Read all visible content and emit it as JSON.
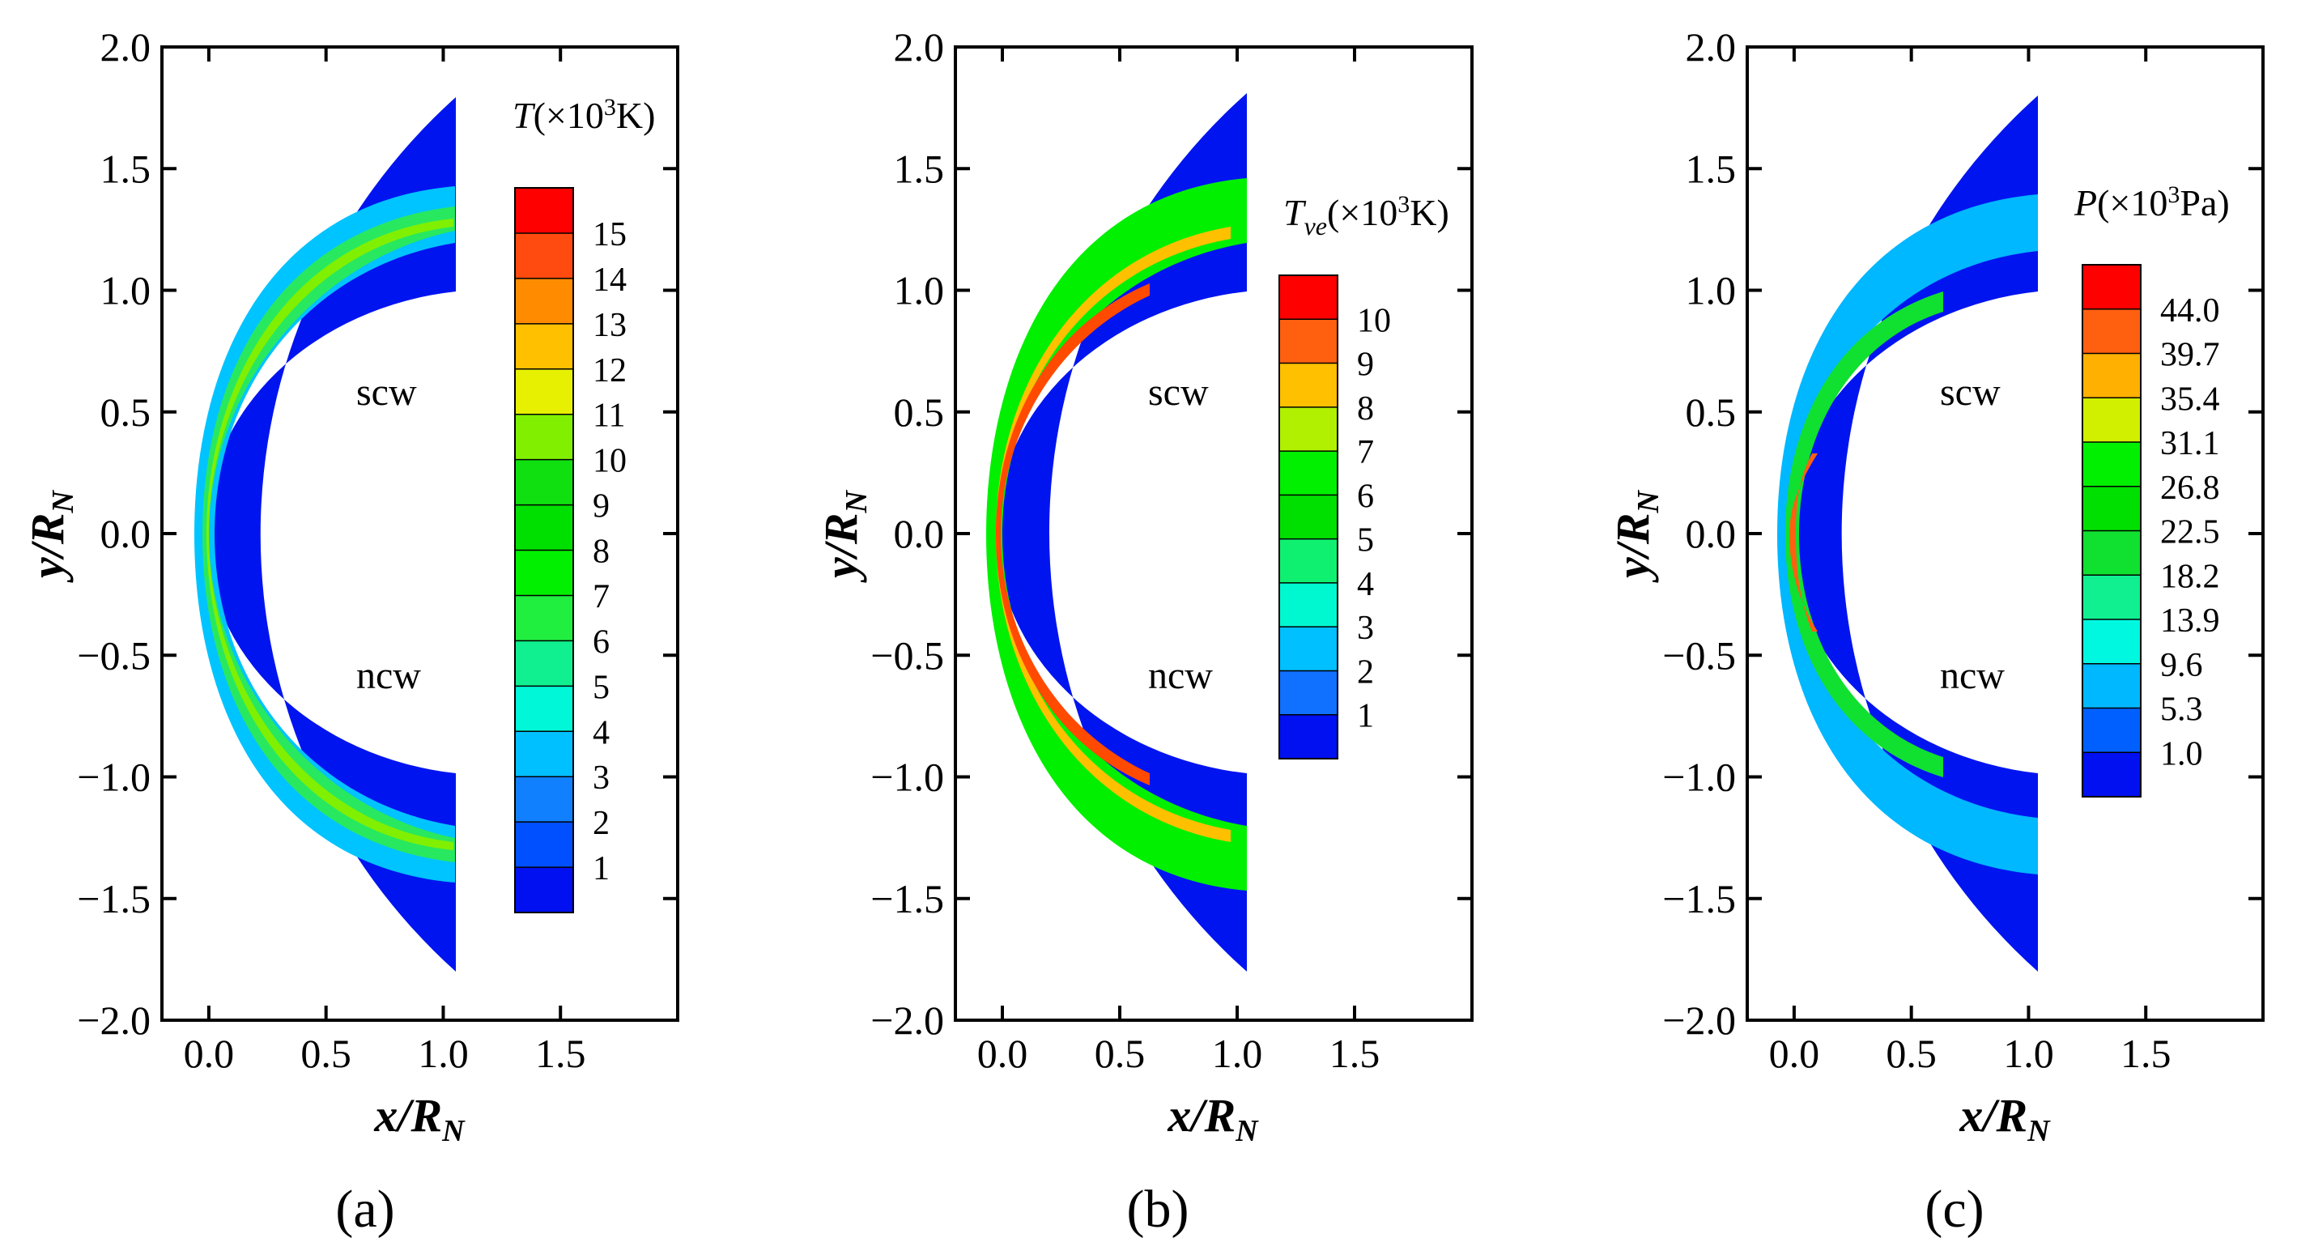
{
  "chart_data": [
    {
      "type": "contour",
      "id": "a",
      "caption": "(a)",
      "xlabel_main": "x/R",
      "xlabel_sub": "N",
      "ylabel_main": "y/R",
      "ylabel_sub": "N",
      "xlim": [
        -0.2,
        2.0
      ],
      "ylim": [
        -2.0,
        2.0
      ],
      "xticks": [
        "0.0",
        "0.5",
        "1.0",
        "1.5"
      ],
      "xtick_values": [
        0.0,
        0.5,
        1.0,
        1.5
      ],
      "yticks": [
        "2.0",
        "1.5",
        "1.0",
        "0.5",
        "0.0",
        "−0.5",
        "−1.0",
        "−1.5",
        "−2.0"
      ],
      "ytick_values": [
        2.0,
        1.5,
        1.0,
        0.5,
        0.0,
        -0.5,
        -1.0,
        -1.5,
        -2.0
      ],
      "annotations": [
        "scw",
        "ncw"
      ],
      "legend": {
        "var": "T",
        "sub": "",
        "prefix": "(×10",
        "exp": "3",
        "unit": "K)",
        "levels": [
          "15",
          "14",
          "13",
          "12",
          "11",
          "10",
          "9",
          "8",
          "7",
          "6",
          "5",
          "4",
          "3",
          "2",
          "1"
        ],
        "colors": [
          "#ff0000",
          "#ff4a10",
          "#ff8c00",
          "#ffc000",
          "#e6f000",
          "#80f000",
          "#10e010",
          "#00e000",
          "#00f000",
          "#20ef40",
          "#10f090",
          "#00f8d8",
          "#00c0ff",
          "#1080ff",
          "#0050ff",
          "#0010f0"
        ]
      }
    },
    {
      "type": "contour",
      "id": "b",
      "caption": "(b)",
      "xlabel_main": "x/R",
      "xlabel_sub": "N",
      "ylabel_main": "y/R",
      "ylabel_sub": "N",
      "xlim": [
        -0.2,
        2.0
      ],
      "ylim": [
        -2.0,
        2.0
      ],
      "xticks": [
        "0.0",
        "0.5",
        "1.0",
        "1.5"
      ],
      "xtick_values": [
        0.0,
        0.5,
        1.0,
        1.5
      ],
      "yticks": [
        "2.0",
        "1.5",
        "1.0",
        "0.5",
        "0.0",
        "−0.5",
        "−1.0",
        "−1.5",
        "−2.0"
      ],
      "ytick_values": [
        2.0,
        1.5,
        1.0,
        0.5,
        0.0,
        -0.5,
        -1.0,
        -1.5,
        -2.0
      ],
      "annotations": [
        "scw",
        "ncw"
      ],
      "legend": {
        "var": "T",
        "sub": "ve",
        "prefix": "(×10",
        "exp": "3",
        "unit": "K)",
        "levels": [
          "10",
          "9",
          "8",
          "7",
          "6",
          "5",
          "4",
          "3",
          "2",
          "1"
        ],
        "colors": [
          "#ff0000",
          "#ff6010",
          "#ffc000",
          "#b0f000",
          "#00f000",
          "#00e000",
          "#10f070",
          "#00f8d0",
          "#00c0ff",
          "#1070ff",
          "#0010f0"
        ]
      }
    },
    {
      "type": "contour",
      "id": "c",
      "caption": "(c)",
      "xlabel_main": "x/R",
      "xlabel_sub": "N",
      "ylabel_main": "y/R",
      "ylabel_sub": "N",
      "xlim": [
        -0.2,
        2.0
      ],
      "ylim": [
        -2.0,
        2.0
      ],
      "xticks": [
        "0.0",
        "0.5",
        "1.0",
        "1.5"
      ],
      "xtick_values": [
        0.0,
        0.5,
        1.0,
        1.5
      ],
      "yticks": [
        "2.0",
        "1.5",
        "1.0",
        "0.5",
        "0.0",
        "−0.5",
        "−1.0",
        "−1.5",
        "−2.0"
      ],
      "ytick_values": [
        2.0,
        1.5,
        1.0,
        0.5,
        0.0,
        -0.5,
        -1.0,
        -1.5,
        -2.0
      ],
      "annotations": [
        "scw",
        "ncw"
      ],
      "legend": {
        "var": "P",
        "sub": "",
        "prefix": "(×10",
        "exp": "3",
        "unit": "Pa)",
        "levels": [
          "44.0",
          "39.7",
          "35.4",
          "31.1",
          "26.8",
          "22.5",
          "18.2",
          "13.9",
          "9.6",
          "5.3",
          "1.0"
        ],
        "colors": [
          "#ff0000",
          "#ff6010",
          "#ffb000",
          "#d0f000",
          "#00f000",
          "#00e000",
          "#10e030",
          "#10f090",
          "#00f8e0",
          "#00b8ff",
          "#0060ff",
          "#0010f0"
        ]
      }
    }
  ]
}
